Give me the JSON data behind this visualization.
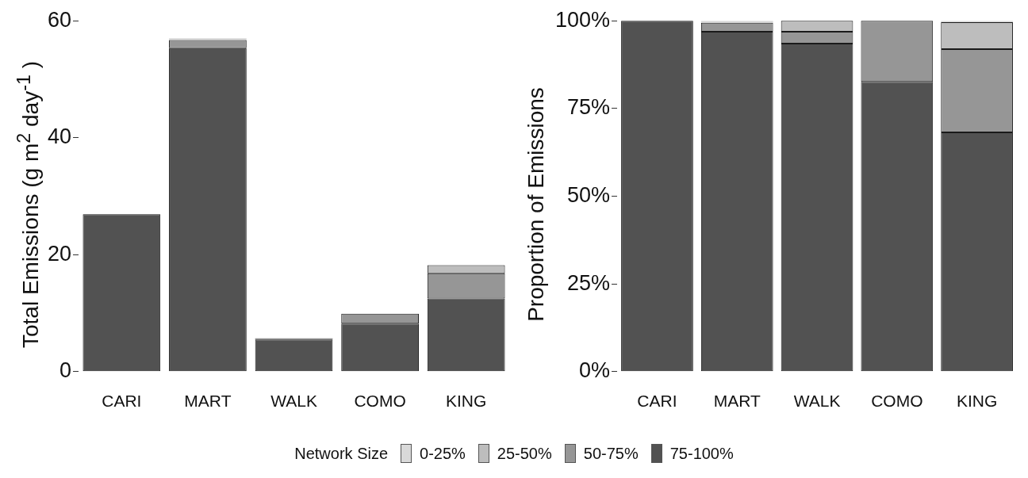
{
  "chart_data": [
    {
      "type": "bar",
      "stacked": true,
      "ylabel": "Total Emissions (g  m$^{2}$ day$^{-1}$ )",
      "legend": "bottom",
      "legend_title": "Network Size",
      "categories": [
        "CARI",
        "MART",
        "WALK",
        "COMO",
        "KING"
      ],
      "ylim": [
        0,
        60
      ],
      "yticks": [
        0,
        20,
        40,
        60
      ],
      "grid": false,
      "series": [
        {
          "name": "75-100%",
          "color": "#525252",
          "values": [
            26.9,
            55.3,
            5.5,
            8.2,
            12.5
          ]
        },
        {
          "name": "50-75%",
          "color": "#969696",
          "values": [
            0,
            1.4,
            0.2,
            1.7,
            4.3
          ]
        },
        {
          "name": "25-50%",
          "color": "#bdbdbd",
          "values": [
            0,
            0,
            null,
            0,
            1.4
          ]
        },
        {
          "name": "0-25%",
          "color": "#d9d9d9",
          "values": [
            0,
            0.3,
            0,
            0,
            null
          ]
        }
      ]
    },
    {
      "type": "bar",
      "stacked": true,
      "ylabel": "Proportion of Emissions",
      "categories": [
        "CARI",
        "MART",
        "WALK",
        "COMO",
        "KING"
      ],
      "ylim": [
        0,
        100
      ],
      "yticks": [
        {
          "value": 0,
          "label": "0%"
        },
        {
          "value": 25,
          "label": "25%"
        },
        {
          "value": 50,
          "label": "50%"
        },
        {
          "value": 75,
          "label": "75%"
        },
        {
          "value": 100,
          "label": "100%"
        }
      ],
      "grid": false,
      "series": [
        {
          "color": "#525252",
          "values": [
            100,
            96.9,
            93.5,
            82.6,
            68.2
          ]
        },
        {
          "color": "#969696",
          "values": [
            0,
            2.5,
            3.4,
            17.4,
            23.7
          ]
        },
        {
          "color": "#bdbdbd",
          "values": [
            0,
            0,
            3.1,
            0,
            7.7
          ]
        },
        {
          "color": "#d9d9d9",
          "values": [
            0,
            0.6,
            0,
            0,
            0.4
          ]
        }
      ]
    }
  ]
}
